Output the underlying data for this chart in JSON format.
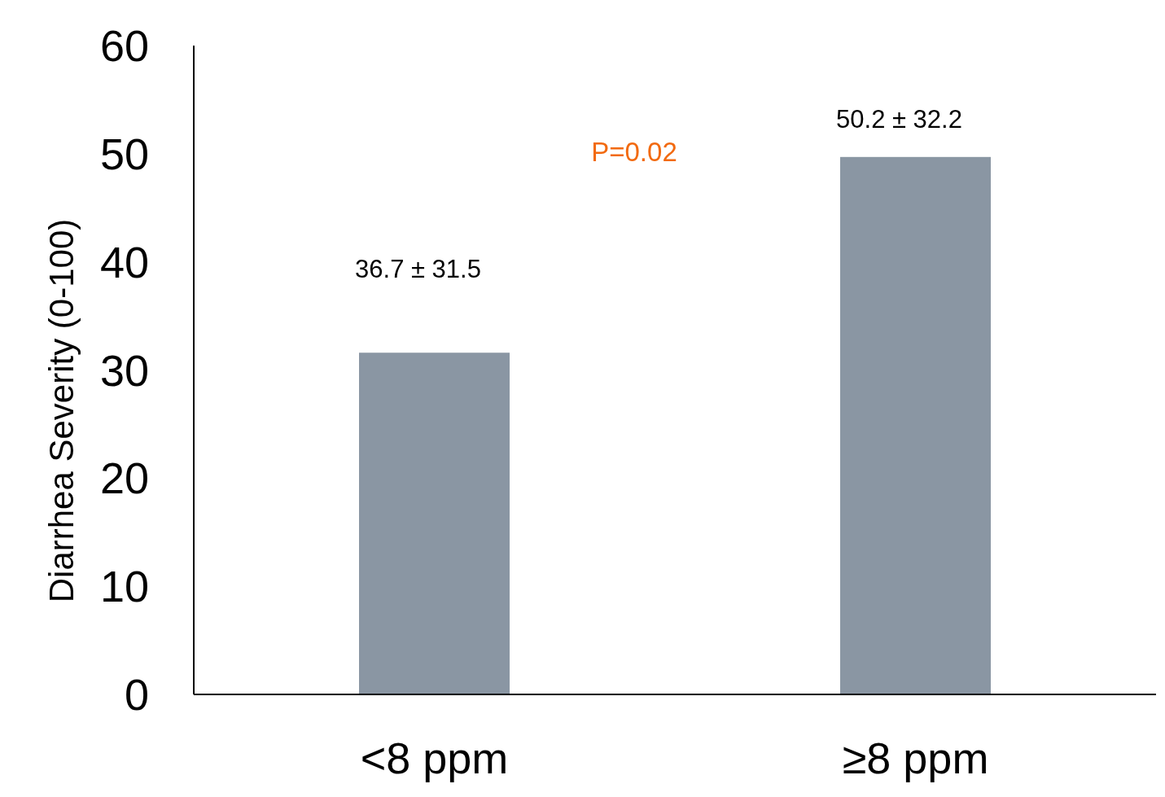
{
  "chart_data": {
    "type": "bar",
    "ylabel": "Diarrhea Severity (0-100)",
    "categories": [
      "<8 ppm",
      "≥8 ppm"
    ],
    "values": [
      31.6,
      49.7
    ],
    "color": "#8a96a3",
    "ylim": [
      0,
      60
    ],
    "yticks": [
      0,
      10,
      20,
      30,
      40,
      50,
      60
    ],
    "annotations": [
      "36.7 ± 31.5",
      "50.2 ± 32.2",
      "P=0.02"
    ],
    "grid": false,
    "legend": false
  }
}
